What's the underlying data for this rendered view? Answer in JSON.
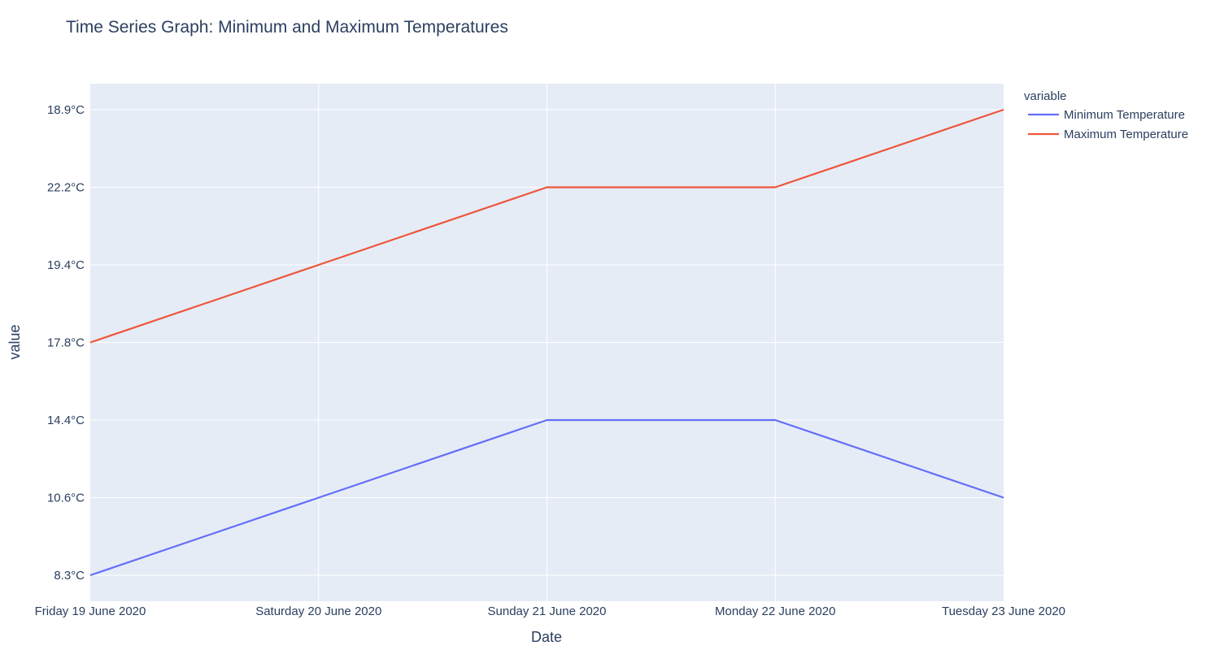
{
  "chart_data": {
    "type": "line",
    "title": "Time Series Graph:  Minimum and Maximum Temperatures",
    "xlabel": "Date",
    "ylabel": "value",
    "x": [
      "Friday 19 June 2020",
      "Saturday 20 June 2020",
      "Sunday 21 June 2020",
      "Monday 22 June 2020",
      "Tuesday 23 June 2020"
    ],
    "y_axis": {
      "type": "category",
      "categories": [
        "8.3°C",
        "10.6°C",
        "14.4°C",
        "17.8°C",
        "19.4°C",
        "22.2°C",
        "18.9°C"
      ]
    },
    "series": [
      {
        "name": "Minimum Temperature",
        "color": "#636efa",
        "values": [
          "8.3°C",
          "10.6°C",
          "14.4°C",
          "14.4°C",
          "10.6°C"
        ]
      },
      {
        "name": "Maximum Temperature",
        "color": "#ef553b",
        "values": [
          "17.8°C",
          "19.4°C",
          "22.2°C",
          "22.2°C",
          "18.9°C"
        ]
      }
    ],
    "legend": {
      "title": "variable",
      "placement": "right"
    },
    "grid": true,
    "plot_background": "#e5ecf6",
    "grid_color": "#ffffff"
  }
}
